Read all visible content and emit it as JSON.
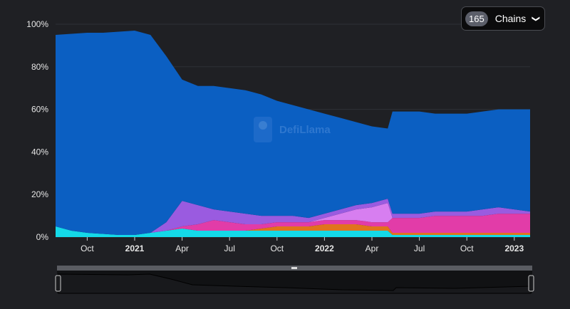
{
  "chain_selector": {
    "count": "165",
    "label": "Chains",
    "chevron": "chevron-down-icon"
  },
  "watermark": "DefiLlama",
  "chart_data": {
    "type": "area",
    "stacked": true,
    "title": "",
    "xlabel": "",
    "ylabel": "",
    "ylim": [
      0,
      100
    ],
    "yticks": [
      0,
      20,
      40,
      60,
      80,
      100
    ],
    "ytick_labels": [
      "0%",
      "20%",
      "40%",
      "60%",
      "80%",
      "100%"
    ],
    "x_units": "months since Aug 2020",
    "xlim": [
      0,
      30
    ],
    "xticks": [
      {
        "x": 2,
        "label": "Oct",
        "bold": false
      },
      {
        "x": 5,
        "label": "2021",
        "bold": true
      },
      {
        "x": 8,
        "label": "Apr",
        "bold": false
      },
      {
        "x": 11,
        "label": "Jul",
        "bold": false
      },
      {
        "x": 14,
        "label": "Oct",
        "bold": false
      },
      {
        "x": 17,
        "label": "2022",
        "bold": true
      },
      {
        "x": 20,
        "label": "Apr",
        "bold": false
      },
      {
        "x": 23,
        "label": "Jul",
        "bold": false
      },
      {
        "x": 26,
        "label": "Oct",
        "bold": false
      },
      {
        "x": 29,
        "label": "2023",
        "bold": true
      }
    ],
    "x": [
      0,
      1,
      2,
      3,
      4,
      5,
      6,
      7,
      8,
      9,
      10,
      11,
      12,
      13,
      14,
      15,
      16,
      17,
      18,
      19,
      20,
      21,
      21.3,
      22,
      23,
      24,
      25,
      26,
      27,
      28,
      29,
      30
    ],
    "series": [
      {
        "name": "cyan",
        "color": "#14d9e8",
        "values": [
          5,
          3,
          2,
          1.5,
          1,
          1,
          2,
          3,
          4,
          3,
          3,
          3,
          3,
          3,
          3,
          3,
          3,
          3,
          3,
          3,
          3,
          3,
          1,
          1,
          1,
          1,
          1,
          1,
          1,
          1,
          1,
          1
        ]
      },
      {
        "name": "orange",
        "color": "#e0741c",
        "values": [
          0,
          0,
          0,
          0,
          0,
          0,
          0,
          0,
          0,
          0,
          0,
          0,
          0,
          1,
          2,
          2,
          2,
          3,
          3,
          3,
          2,
          2,
          1,
          1,
          1,
          1,
          1,
          1,
          1,
          1,
          1,
          1
        ]
      },
      {
        "name": "pink",
        "color": "#e23ca8",
        "values": [
          0,
          0,
          0,
          0,
          0,
          0,
          0,
          0,
          1,
          3,
          5,
          4,
          3,
          2,
          2,
          2,
          2,
          2,
          2,
          2,
          2,
          2,
          7,
          7,
          7,
          8,
          8,
          8,
          8,
          9,
          9,
          9
        ]
      },
      {
        "name": "violet",
        "color": "#d77ef0",
        "values": [
          0,
          0,
          0,
          0,
          0,
          0,
          0,
          0,
          0,
          0,
          0,
          0,
          0,
          0,
          0,
          0,
          0,
          1,
          3,
          5,
          7,
          9,
          0,
          0,
          0,
          0,
          0,
          0,
          0,
          0,
          0,
          0
        ]
      },
      {
        "name": "purple",
        "color": "#9a5be0",
        "values": [
          0,
          0,
          0,
          0,
          0,
          0,
          0,
          4,
          12,
          9,
          5,
          5,
          5,
          4,
          3,
          3,
          2,
          2,
          2,
          2,
          2,
          2,
          2,
          2,
          2,
          2,
          2,
          2,
          3,
          3,
          2,
          1
        ]
      },
      {
        "name": "ethereum",
        "color": "#0b5fc2",
        "values": [
          90,
          92.5,
          94,
          94.5,
          95.5,
          96,
          93,
          78,
          57,
          56,
          58,
          58,
          58,
          57,
          54,
          52,
          51,
          47,
          43,
          39,
          36,
          33,
          48,
          48,
          48,
          46,
          46,
          46,
          46,
          46,
          47,
          48
        ]
      }
    ]
  }
}
